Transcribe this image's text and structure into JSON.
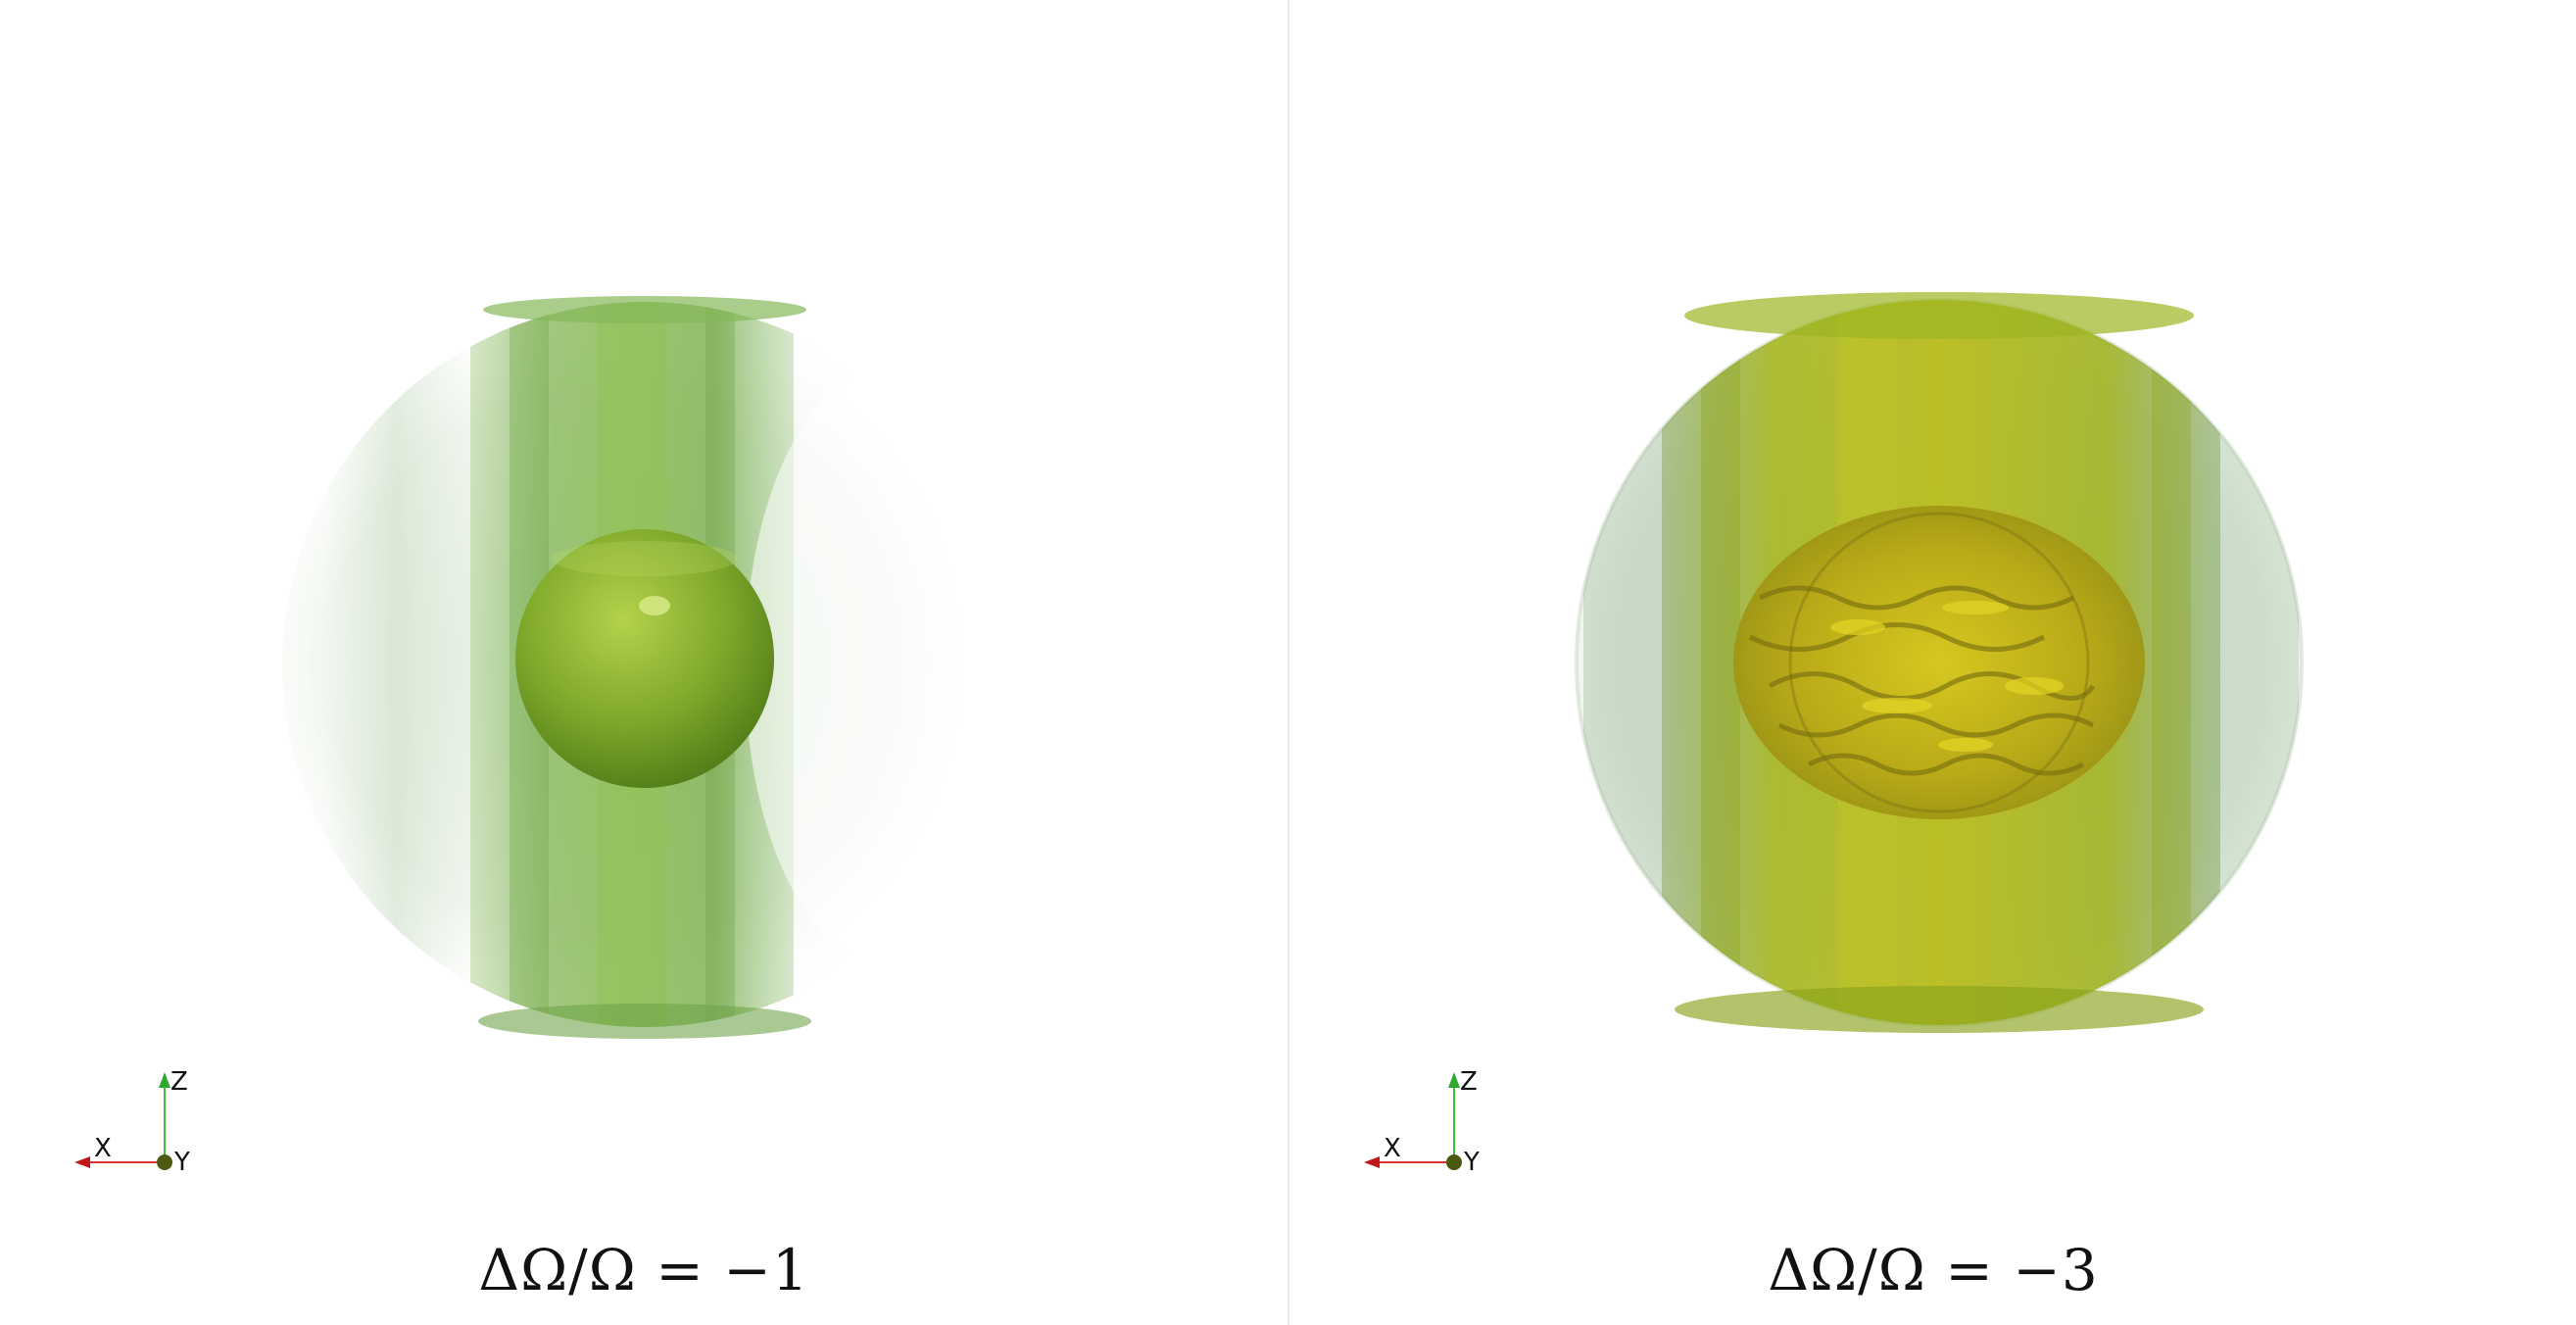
{
  "panels": [
    {
      "caption": "ΔΩ/Ω = −1",
      "axes": {
        "z": "Z",
        "x": "X",
        "y": "Y"
      },
      "colors": {
        "shell": "#6fa83a",
        "core": "#7aa52c",
        "outer": "#9fc49a"
      }
    },
    {
      "caption": "ΔΩ/Ω = −3",
      "axes": {
        "z": "Z",
        "x": "X",
        "y": "Y"
      },
      "colors": {
        "shell": "#a6b81a",
        "core": "#c9c21a",
        "outer": "#a8c4a6"
      }
    }
  ]
}
